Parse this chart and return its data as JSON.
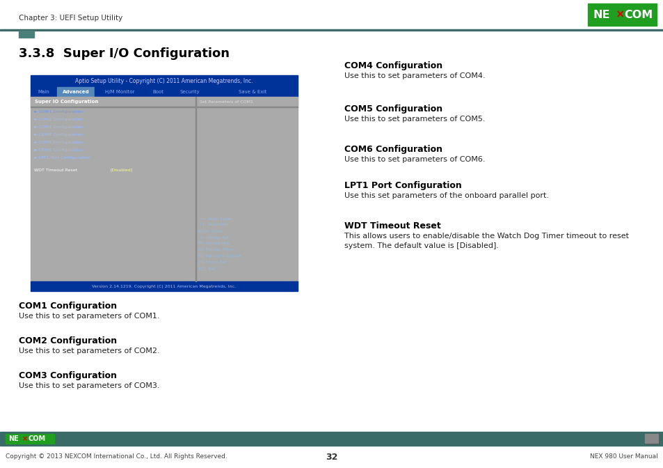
{
  "page_title": "Chapter 3: UEFI Setup Utility",
  "section_title": "3.3.8  Super I/O Configuration",
  "header_bar_color": "#3d6b68",
  "header_square_color": "#3d6b68",
  "bios_title": "Aptio Setup Utility - Copyright (C) 2011 American Megatrends, Inc.",
  "bios_nav": [
    "Main",
    "Advanced",
    "H/M Monitor",
    "Boot",
    "Security",
    "Save & Exit"
  ],
  "bios_nav_active": "Advanced",
  "bios_left_title": "Super IO Configuration",
  "bios_right_hint": "Set Parameters of COM1",
  "bios_menu_items": [
    "► COM1 Configuration",
    "► COM2 Configuration",
    "► COM3 Configuration",
    "► COM4 Configuration",
    "► COM5 Configuration",
    "► COM6 Configuration",
    "► LPT1 Port Configuration"
  ],
  "bios_wdt": "WDT Timeout Reset",
  "bios_wdt_value": "[Disabled]",
  "bios_help_lines": [
    "←→: Select Screen",
    "↑↓: Select Item",
    "Enter: Select",
    "+/-: Change Opt.",
    "F1: General Help",
    "F2: Previous Values",
    "F3: Optimized Defaults",
    "F4: Save & Exit",
    "ESC: Exit"
  ],
  "bios_version": "Version 2.14.1219. Copyright (C) 2011 American Megatrends, Inc.",
  "left_sections": [
    {
      "heading": "COM1 Configuration",
      "body": "Use this to set parameters of COM1."
    },
    {
      "heading": "COM2 Configuration",
      "body": "Use this to set parameters of COM2."
    },
    {
      "heading": "COM3 Configuration",
      "body": "Use this to set parameters of COM3."
    }
  ],
  "right_sections": [
    {
      "heading": "COM4 Configuration",
      "body": "Use this to set parameters of COM4."
    },
    {
      "heading": "COM5 Configuration",
      "body": "Use this to set parameters of COM5."
    },
    {
      "heading": "COM6 Configuration",
      "body": "Use this to set parameters of COM6."
    },
    {
      "heading": "LPT1 Port Configuration",
      "body": "Use this set parameters of the onboard parallel port."
    },
    {
      "heading": "WDT Timeout Reset",
      "body": "This allows users to enable/disable the Watch Dog Timer timeout to reset\nsystem. The default value is [Disabled]."
    }
  ],
  "footer_bg": "#3a6b66",
  "footer_copyright": "Copyright © 2013 NEXCOM International Co., Ltd. All Rights Reserved.",
  "footer_page": "32",
  "footer_right": "NEX 980 User Manual"
}
